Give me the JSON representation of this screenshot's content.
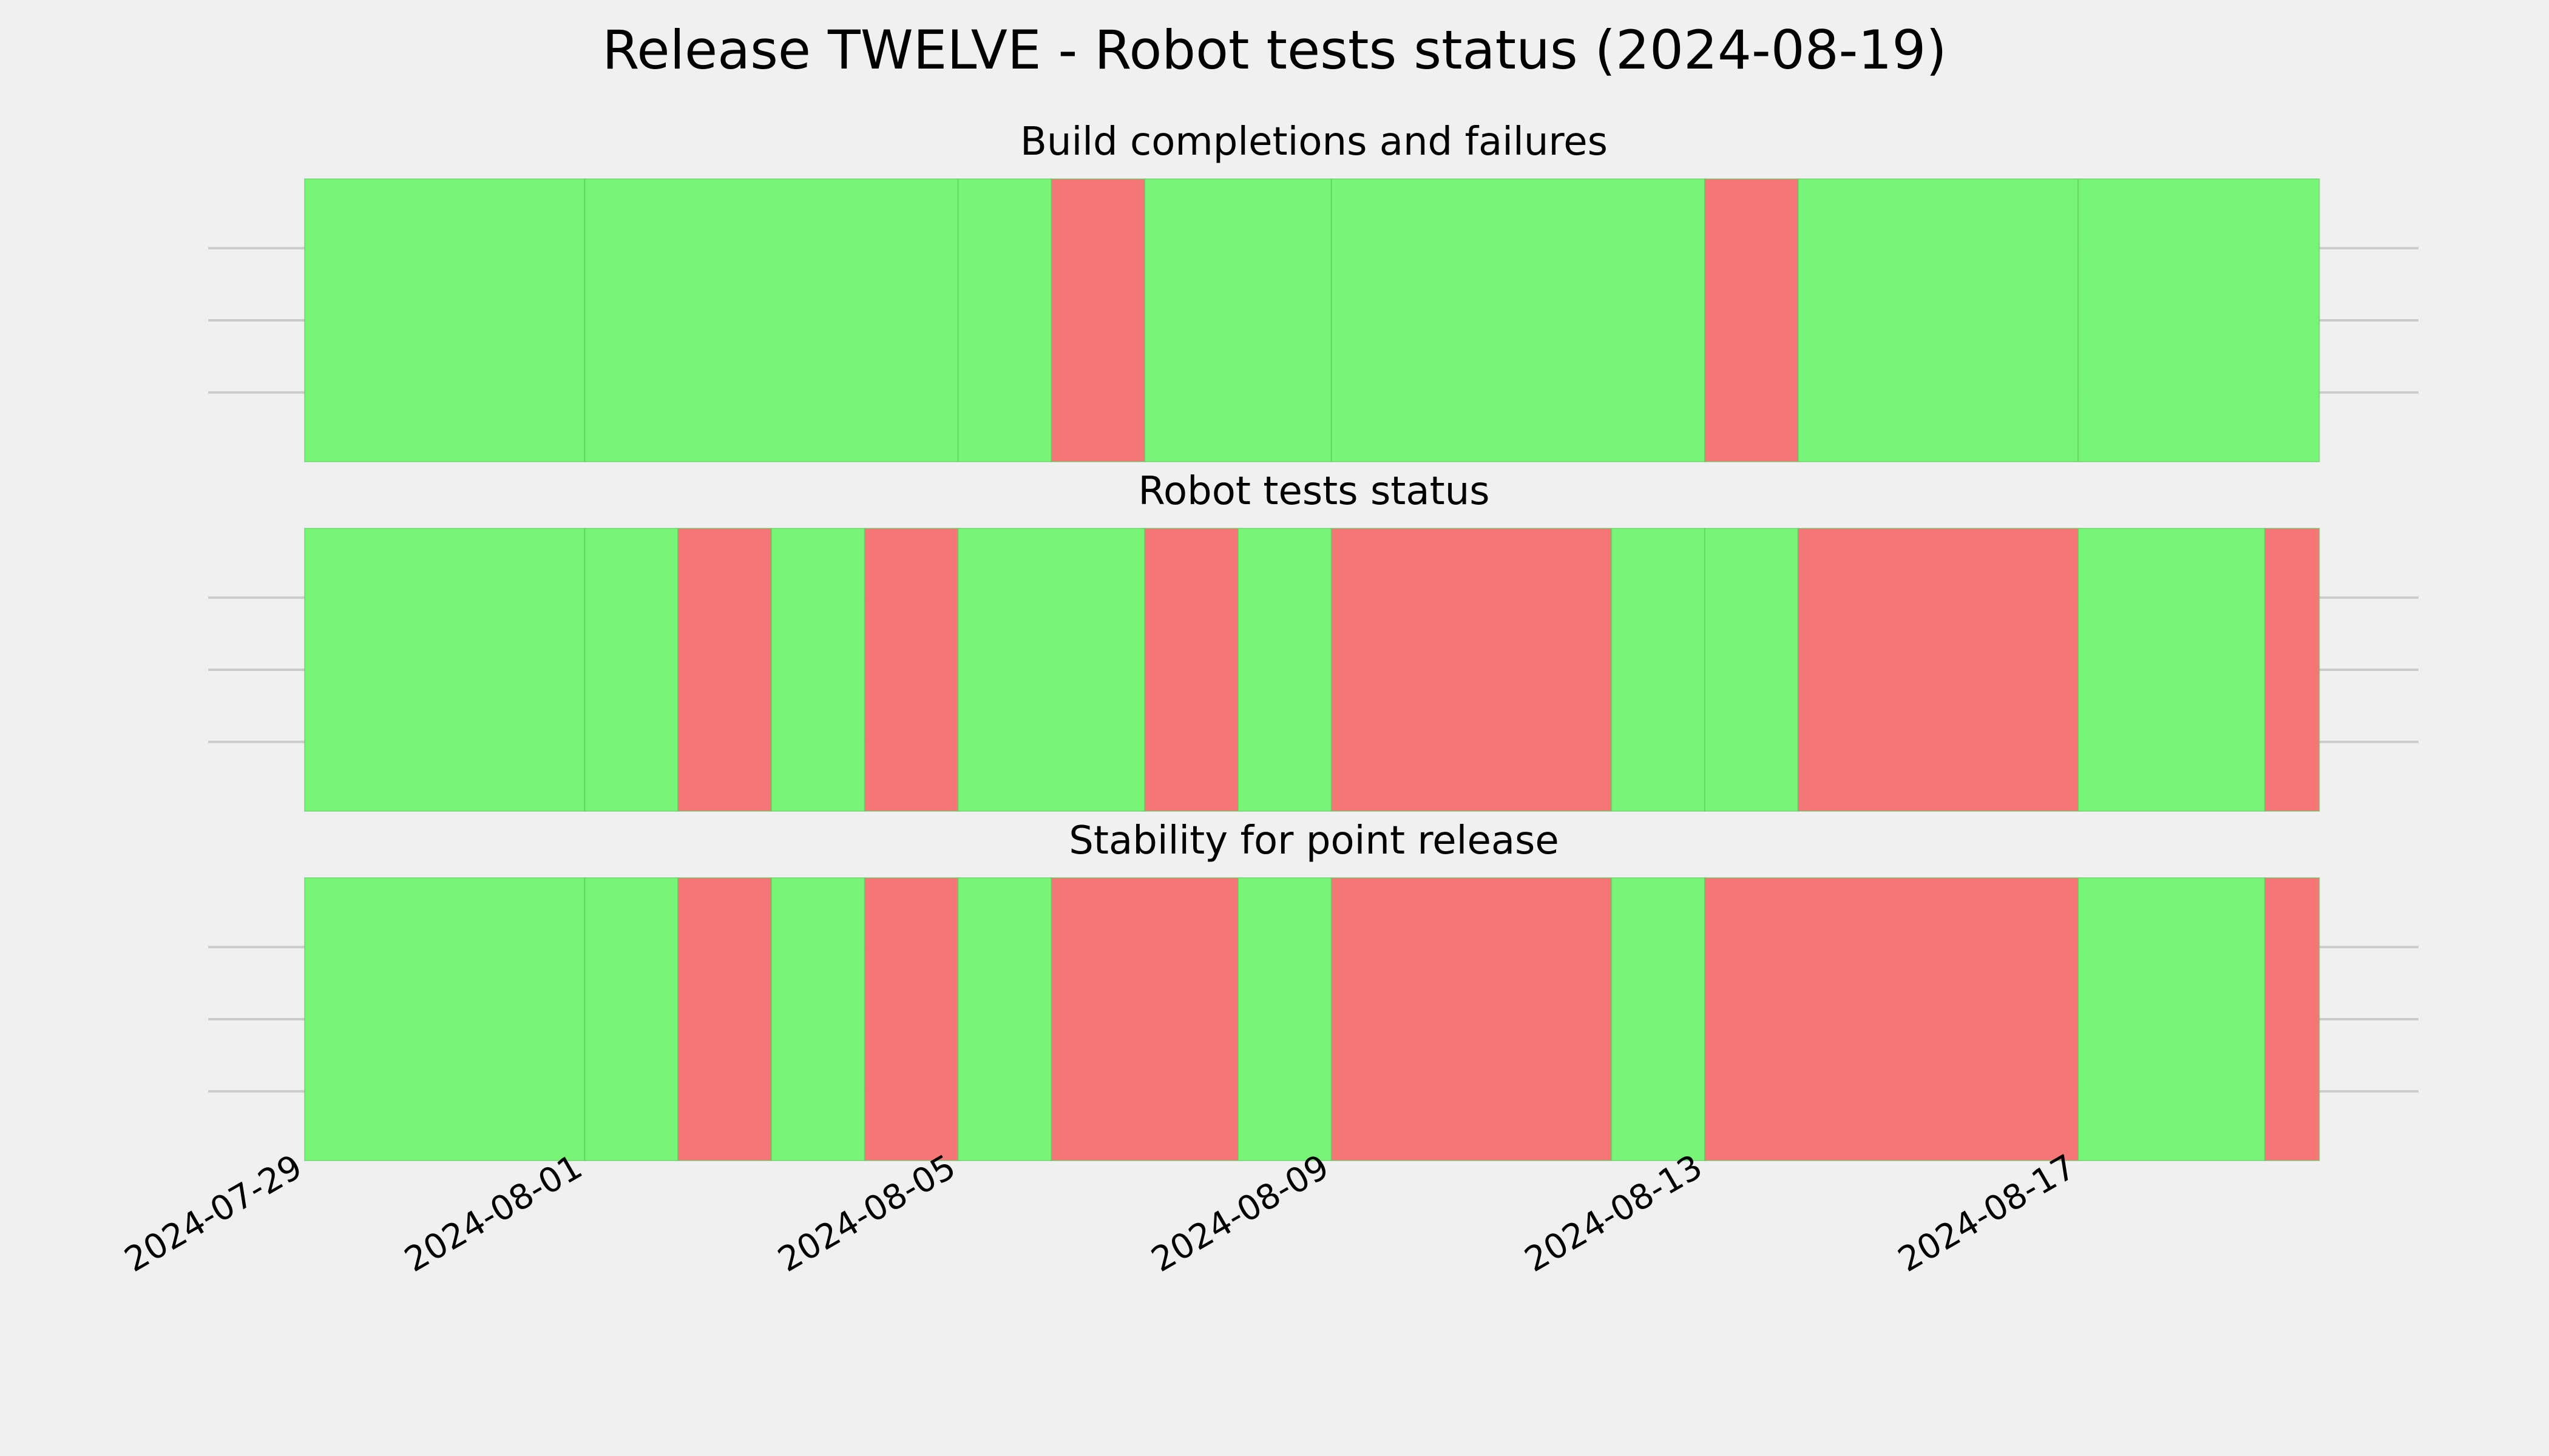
{
  "figure": {
    "title": "Release TWELVE - Robot tests status (2024-08-19)"
  },
  "colors": {
    "background": "#f0f0f0",
    "pass": "#76f576",
    "fail": "#f57676",
    "segment_edge": "#5cc95c",
    "gridline": "#cbcbcb"
  },
  "chart_data": {
    "type": "timeline",
    "x_axis": {
      "type": "date",
      "range": [
        "2024-07-29",
        "2024-08-19"
      ],
      "ticks": [
        "2024-07-29",
        "2024-08-01",
        "2024-08-05",
        "2024-08-09",
        "2024-08-13",
        "2024-08-17"
      ]
    },
    "grid": true,
    "legend": "none",
    "status_values": [
      "pass",
      "fail"
    ],
    "panels": [
      {
        "title": "Build completions and failures",
        "segments": [
          {
            "start": "2024-07-29",
            "end": "2024-08-01",
            "status": "pass"
          },
          {
            "start": "2024-08-01",
            "end": "2024-08-05",
            "status": "pass"
          },
          {
            "start": "2024-08-05",
            "end": "2024-08-06",
            "status": "pass"
          },
          {
            "start": "2024-08-06",
            "end": "2024-08-07",
            "status": "fail"
          },
          {
            "start": "2024-08-07",
            "end": "2024-08-09",
            "status": "pass"
          },
          {
            "start": "2024-08-09",
            "end": "2024-08-13",
            "status": "pass"
          },
          {
            "start": "2024-08-13",
            "end": "2024-08-14",
            "status": "fail"
          },
          {
            "start": "2024-08-14",
            "end": "2024-08-17",
            "status": "pass"
          },
          {
            "start": "2024-08-17",
            "end": "2024-08-19 14:00",
            "status": "pass"
          }
        ]
      },
      {
        "title": "Robot tests status",
        "segments": [
          {
            "start": "2024-07-29",
            "end": "2024-08-01",
            "status": "pass"
          },
          {
            "start": "2024-08-01",
            "end": "2024-08-02",
            "status": "pass"
          },
          {
            "start": "2024-08-02",
            "end": "2024-08-03",
            "status": "fail"
          },
          {
            "start": "2024-08-03",
            "end": "2024-08-04",
            "status": "pass"
          },
          {
            "start": "2024-08-04",
            "end": "2024-08-05",
            "status": "fail"
          },
          {
            "start": "2024-08-05",
            "end": "2024-08-07",
            "status": "pass"
          },
          {
            "start": "2024-08-07",
            "end": "2024-08-08",
            "status": "fail"
          },
          {
            "start": "2024-08-08",
            "end": "2024-08-09",
            "status": "pass"
          },
          {
            "start": "2024-08-09",
            "end": "2024-08-12",
            "status": "fail"
          },
          {
            "start": "2024-08-12",
            "end": "2024-08-13",
            "status": "pass"
          },
          {
            "start": "2024-08-13",
            "end": "2024-08-14",
            "status": "pass"
          },
          {
            "start": "2024-08-14",
            "end": "2024-08-17",
            "status": "fail"
          },
          {
            "start": "2024-08-17",
            "end": "2024-08-19",
            "status": "pass"
          },
          {
            "start": "2024-08-19",
            "end": "2024-08-19 14:00",
            "status": "fail"
          }
        ]
      },
      {
        "title": "Stability for point release",
        "segments": [
          {
            "start": "2024-07-29",
            "end": "2024-08-01",
            "status": "pass"
          },
          {
            "start": "2024-08-01",
            "end": "2024-08-02",
            "status": "pass"
          },
          {
            "start": "2024-08-02",
            "end": "2024-08-03",
            "status": "fail"
          },
          {
            "start": "2024-08-03",
            "end": "2024-08-04",
            "status": "pass"
          },
          {
            "start": "2024-08-04",
            "end": "2024-08-05",
            "status": "fail"
          },
          {
            "start": "2024-08-05",
            "end": "2024-08-06",
            "status": "pass"
          },
          {
            "start": "2024-08-06",
            "end": "2024-08-08",
            "status": "fail"
          },
          {
            "start": "2024-08-08",
            "end": "2024-08-09",
            "status": "pass"
          },
          {
            "start": "2024-08-09",
            "end": "2024-08-12",
            "status": "fail"
          },
          {
            "start": "2024-08-12",
            "end": "2024-08-13",
            "status": "pass"
          },
          {
            "start": "2024-08-13",
            "end": "2024-08-17",
            "status": "fail"
          },
          {
            "start": "2024-08-17",
            "end": "2024-08-19",
            "status": "pass"
          },
          {
            "start": "2024-08-19",
            "end": "2024-08-19 14:00",
            "status": "fail"
          }
        ]
      }
    ]
  }
}
